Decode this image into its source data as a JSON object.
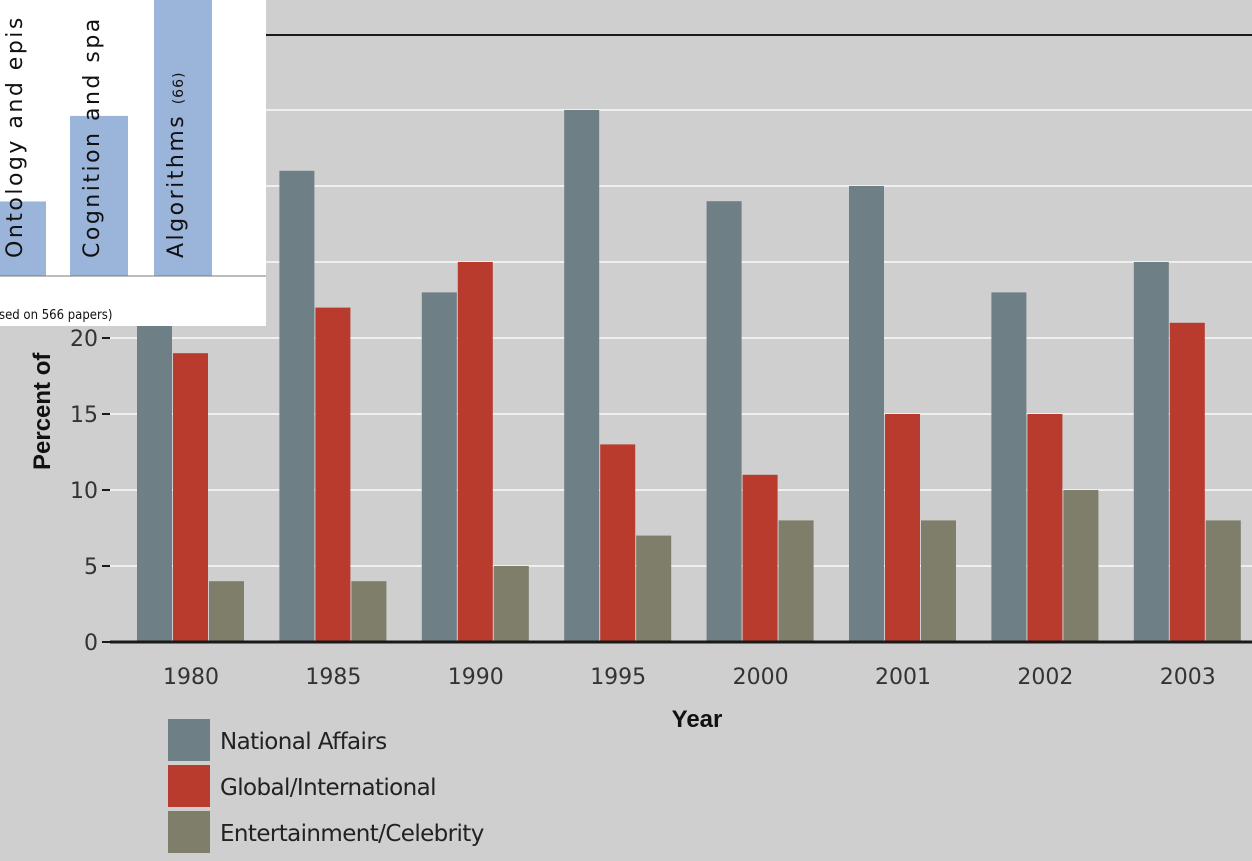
{
  "chart_data": [
    {
      "type": "bar",
      "title": "",
      "xlabel": "Year",
      "ylabel": "Percent of",
      "categories": [
        "1980",
        "1985",
        "1990",
        "1995",
        "2000",
        "2001",
        "2002",
        "2003"
      ],
      "yticks": [
        "0",
        "5",
        "10",
        "15",
        "20"
      ],
      "ylim": [
        0,
        35
      ],
      "grid": true,
      "legend_position": "bottom-left",
      "series": [
        {
          "name": "National Affairs",
          "color": "#6e7f86",
          "values": [
            22,
            31,
            23,
            35,
            29,
            30,
            23,
            25
          ]
        },
        {
          "name": "Global/International",
          "color": "#b93b2e",
          "values": [
            19,
            22,
            25,
            13,
            11,
            15,
            15,
            21
          ]
        },
        {
          "name": "Entertainment/Celebrity",
          "color": "#7e7e6b",
          "values": [
            4,
            4,
            5,
            7,
            8,
            8,
            10,
            8
          ]
        }
      ]
    },
    {
      "type": "bar",
      "categories": [
        {
          "label": "Ontology and epis",
          "count": ""
        },
        {
          "label": "Cognition and spa",
          "count": ""
        },
        {
          "label": "Algorithms",
          "count": "(66)"
        }
      ],
      "values": [
        27,
        58,
        100
      ],
      "color": "#9ab5d9",
      "note": "sed on 566 papers)"
    }
  ]
}
